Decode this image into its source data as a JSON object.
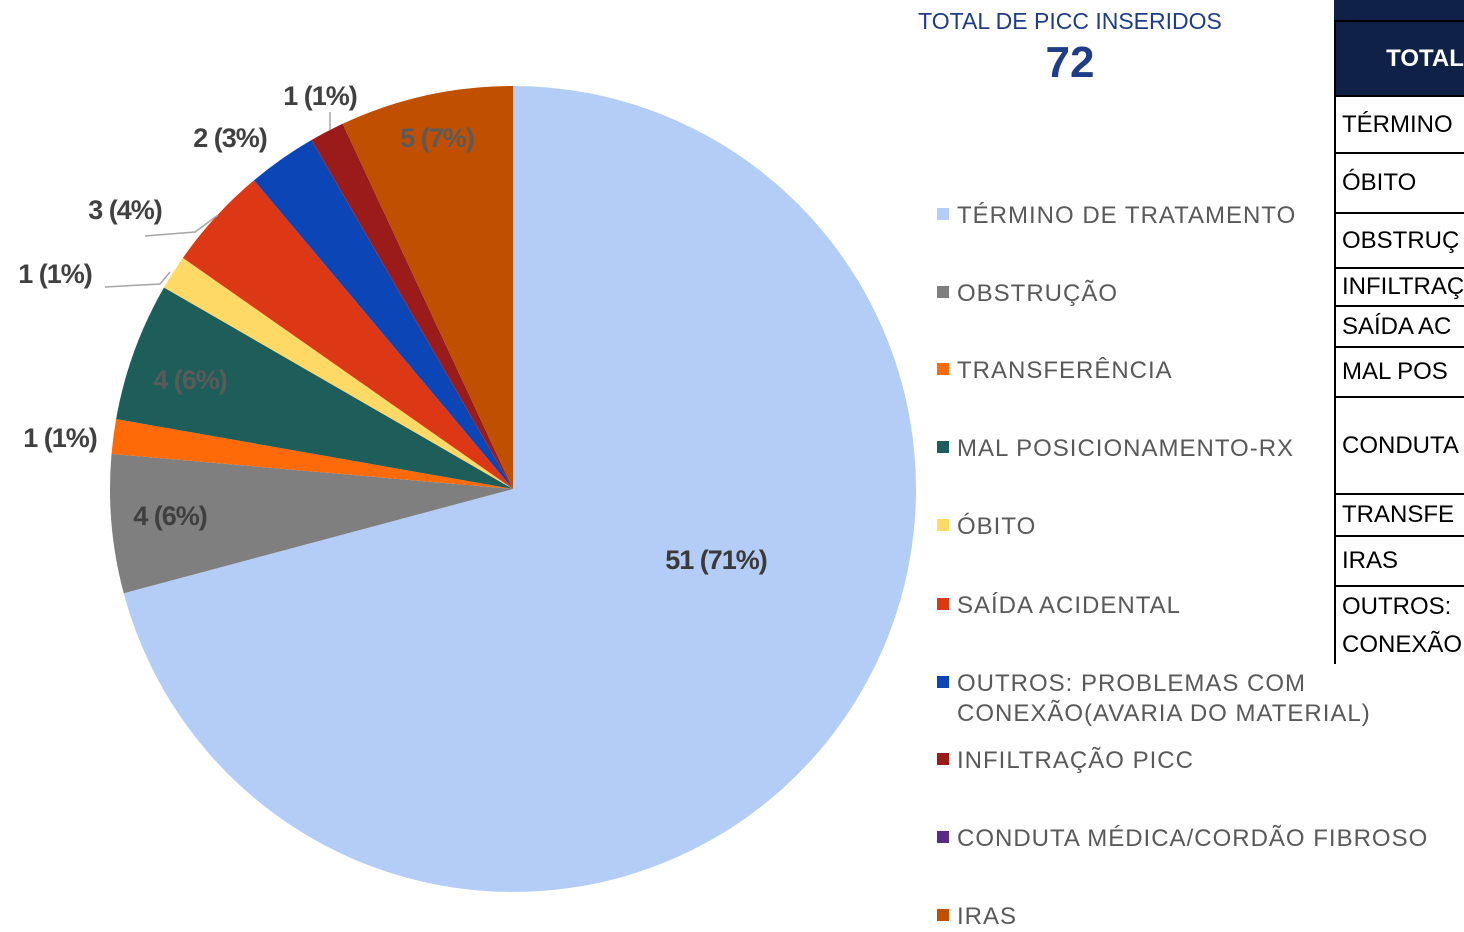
{
  "chart_data": {
    "type": "pie",
    "categories": [
      "TÉRMINO DE TRATAMENTO",
      "OBSTRUÇÃO",
      "TRANSFERÊNCIA",
      "MAL POSICIONAMENTO-RX",
      "ÓBITO",
      "SAÍDA ACIDENTAL",
      "OUTROS: PROBLEMAS COM\nCONEXÃO(AVARIA DO MATERIAL)",
      "INFILTRAÇÃO PICC",
      "CONDUTA MÉDICA/CORDÃO FIBROSO",
      "IRAS"
    ],
    "values": [
      51,
      4,
      1,
      4,
      1,
      3,
      2,
      1,
      0,
      5
    ],
    "value_labels": [
      "51 (71%)",
      "4 (6%)",
      "1 (1%)",
      "4 (6%)",
      "1 (1%)",
      "3 (4%)",
      "2 (3%)",
      "1 (1%)",
      null,
      "5 (7%)"
    ],
    "colors": [
      "#b4cdf6",
      "#7f7f7f",
      "#ff6a08",
      "#1e5e5a",
      "#ffd966",
      "#dc3816",
      "#0c46b6",
      "#9b1b1b",
      "#5b2a86",
      "#c05000"
    ]
  },
  "total": {
    "label": "TOTAL DE PICC INSERIDOS",
    "value": 72
  },
  "table": {
    "header": "TOTAL",
    "rows": [
      "TÉRMINO",
      "ÓBITO",
      "OBSTRUÇ",
      "INFILTRAÇ",
      "SAÍDA AC",
      "MAL POS",
      "CONDUTA",
      "TRANSFE",
      "IRAS",
      "OUTROS:\nCONEXÃO"
    ]
  }
}
